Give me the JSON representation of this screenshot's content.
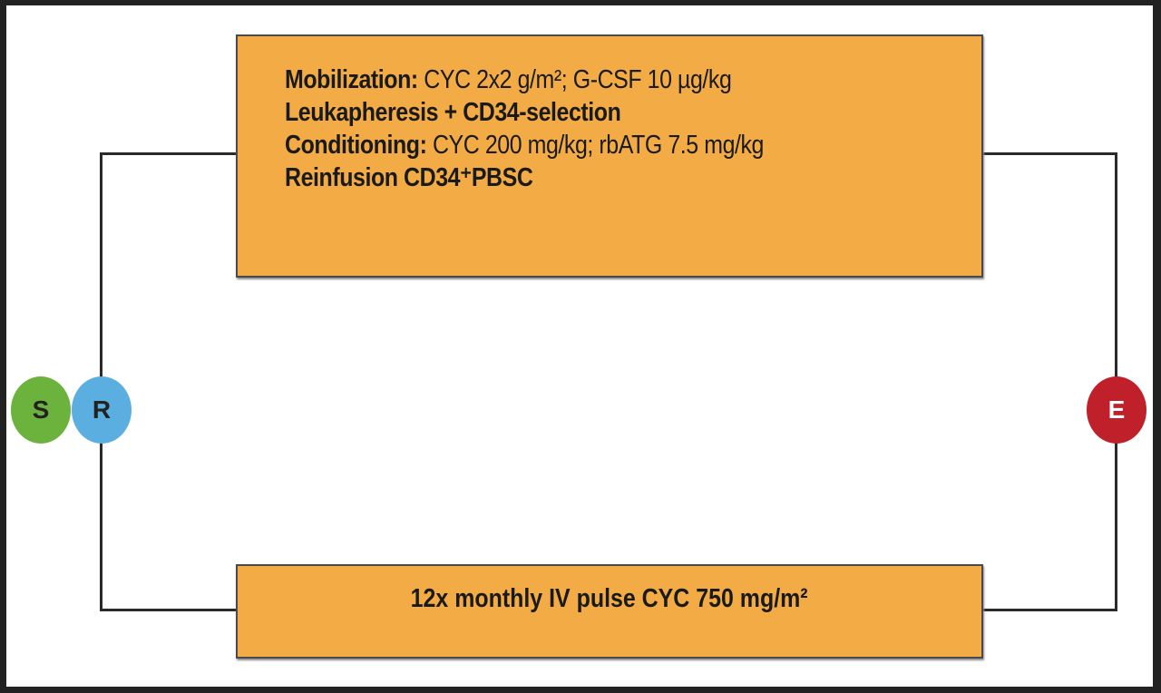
{
  "top_box": {
    "lines": [
      {
        "label": "Mobilization:",
        "text": " CYC 2x2 g/m²; G-CSF 10 µg/kg"
      },
      {
        "label": "Leukapheresis + CD34-selection",
        "text": ""
      },
      {
        "label": "Conditioning:",
        "text": " CYC 200 mg/kg; rbATG 7.5 mg/kg"
      },
      {
        "label": "Reinfusion CD34⁺PBSC",
        "text": ""
      }
    ]
  },
  "bottom_box": {
    "text": "12x monthly IV pulse CYC 750 mg/m²"
  },
  "nodes": {
    "s": {
      "label": "S",
      "color": "#6cb33e"
    },
    "r": {
      "label": "R",
      "color": "#5aaee0"
    },
    "e": {
      "label": "E",
      "color": "#c0202a"
    }
  },
  "box_color": "#f3ac45"
}
